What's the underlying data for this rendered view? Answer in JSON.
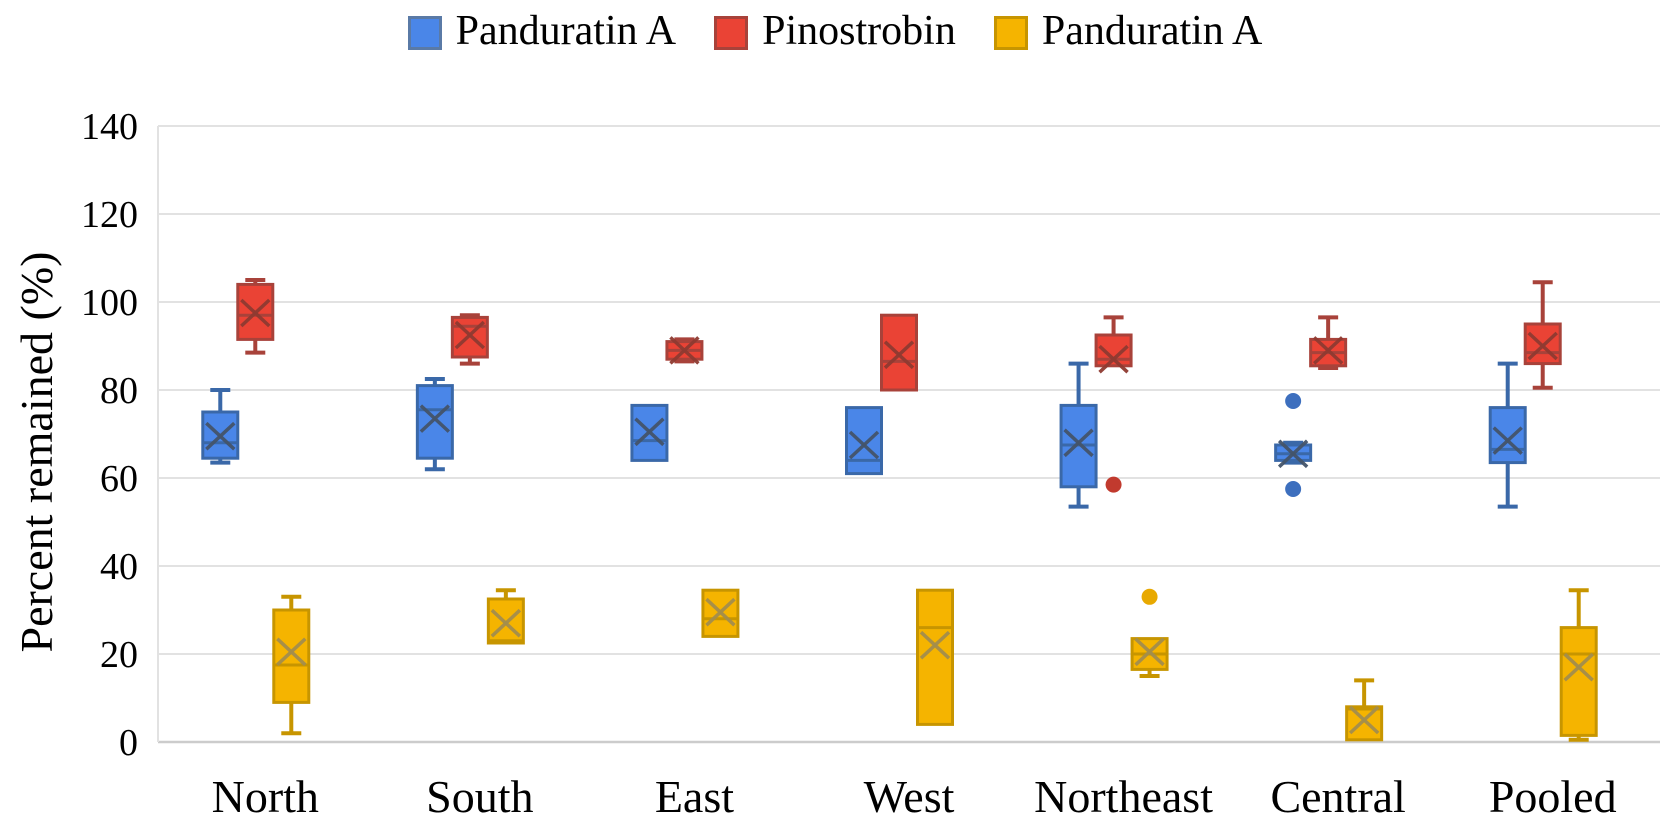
{
  "legend": {
    "items": [
      {
        "label": "Panduratin A"
      },
      {
        "label": "Pinostrobin"
      },
      {
        "label": "Panduratin A"
      }
    ]
  },
  "chart_data": {
    "type": "boxplot",
    "title": "",
    "ylabel": "Percent remained (%)",
    "xlabel": "",
    "ylim": [
      0,
      140
    ],
    "yticks": [
      0,
      20,
      40,
      60,
      80,
      100,
      120,
      140
    ],
    "grid": true,
    "legend_position": "top-center",
    "categories": [
      "North",
      "South",
      "East",
      "West",
      "Northeast",
      "Central",
      "Pooled"
    ],
    "colors": {
      "grid": "#e2e2e2",
      "axis": "#cccccc",
      "background": "#ffffff"
    },
    "series": [
      {
        "name": "Panduratin A",
        "fill": "#4a86e8",
        "stroke": "#3a68a8",
        "mean_color": "#44546a",
        "dot": "#3d6fbe",
        "offset": -45,
        "boxes": [
          {
            "category": "North",
            "low": 63.5,
            "q1": 64.5,
            "median": 68,
            "mean": 69.5,
            "q3": 75,
            "high": 80,
            "outliers": []
          },
          {
            "category": "South",
            "low": 62,
            "q1": 64.5,
            "median": 75.5,
            "mean": 73.5,
            "q3": 81,
            "high": 82.5,
            "outliers": []
          },
          {
            "category": "East",
            "low": 64,
            "q1": 64,
            "median": 68.5,
            "mean": 70.5,
            "q3": 76.5,
            "high": 76.5,
            "outliers": []
          },
          {
            "category": "West",
            "low": 61,
            "q1": 61,
            "median": 64,
            "mean": 67.5,
            "q3": 76,
            "high": 76,
            "outliers": []
          },
          {
            "category": "Northeast",
            "low": 53.5,
            "q1": 58,
            "median": 67.5,
            "mean": 68,
            "q3": 76.5,
            "high": 86,
            "outliers": []
          },
          {
            "category": "Central",
            "low": 63.5,
            "q1": 64,
            "median": 65.5,
            "mean": 65.5,
            "q3": 67.5,
            "high": 68,
            "outliers": [
              77.5,
              57.5
            ]
          },
          {
            "category": "Pooled",
            "low": 53.5,
            "q1": 63.5,
            "median": 66.5,
            "mean": 68.5,
            "q3": 76,
            "high": 86,
            "outliers": []
          }
        ]
      },
      {
        "name": "Pinostrobin",
        "fill": "#ea4335",
        "stroke": "#a8423a",
        "mean_color": "#8f3a31",
        "dot": "#c13a2e",
        "offset": -10,
        "boxes": [
          {
            "category": "North",
            "low": 88.5,
            "q1": 91.5,
            "median": 97,
            "mean": 97.5,
            "q3": 104,
            "high": 105,
            "outliers": []
          },
          {
            "category": "South",
            "low": 86,
            "q1": 87.5,
            "median": 94.5,
            "mean": 92.5,
            "q3": 96.5,
            "high": 97,
            "outliers": []
          },
          {
            "category": "East",
            "low": 86.5,
            "q1": 87,
            "median": 89,
            "mean": 89,
            "q3": 91,
            "high": 91.5,
            "outliers": []
          },
          {
            "category": "West",
            "low": 80,
            "q1": 80,
            "median": 86.5,
            "mean": 88,
            "q3": 97,
            "high": 97,
            "outliers": []
          },
          {
            "category": "Northeast",
            "low": 85.5,
            "q1": 85.5,
            "median": 87,
            "mean": 87,
            "q3": 92.5,
            "high": 96.5,
            "outliers": [
              58.5
            ]
          },
          {
            "category": "Central",
            "low": 85,
            "q1": 85.5,
            "median": 88.5,
            "mean": 89,
            "q3": 91.5,
            "high": 96.5,
            "outliers": []
          },
          {
            "category": "Pooled",
            "low": 80.5,
            "q1": 86,
            "median": 88.5,
            "mean": 90,
            "q3": 95,
            "high": 104.5,
            "outliers": []
          }
        ]
      },
      {
        "name": "Panduratin A",
        "fill": "#f5b400",
        "stroke": "#c79500",
        "mean_color": "#a38e4d",
        "dot": "#e8a900",
        "offset": 26,
        "boxes": [
          {
            "category": "North",
            "low": 2,
            "q1": 9,
            "median": 17.5,
            "mean": 20.5,
            "q3": 30,
            "high": 33,
            "outliers": []
          },
          {
            "category": "South",
            "low": 22.5,
            "q1": 22.5,
            "median": 23,
            "mean": 27,
            "q3": 32.5,
            "high": 34.5,
            "outliers": []
          },
          {
            "category": "East",
            "low": 24,
            "q1": 24,
            "median": 28,
            "mean": 29.5,
            "q3": 34.5,
            "high": 34.5,
            "outliers": []
          },
          {
            "category": "West",
            "low": 4,
            "q1": 4,
            "median": 26,
            "mean": 22,
            "q3": 34.5,
            "high": 34.5,
            "outliers": []
          },
          {
            "category": "Northeast",
            "low": 15,
            "q1": 16.5,
            "median": 20,
            "mean": 20.5,
            "q3": 23.5,
            "high": 23.5,
            "outliers": [
              33
            ]
          },
          {
            "category": "Central",
            "low": 0.5,
            "q1": 0.5,
            "median": 7.5,
            "mean": 5,
            "q3": 8,
            "high": 14,
            "outliers": []
          },
          {
            "category": "Pooled",
            "low": 0.5,
            "q1": 1.5,
            "median": 20,
            "mean": 17,
            "q3": 26,
            "high": 34.5,
            "outliers": []
          }
        ]
      }
    ]
  }
}
